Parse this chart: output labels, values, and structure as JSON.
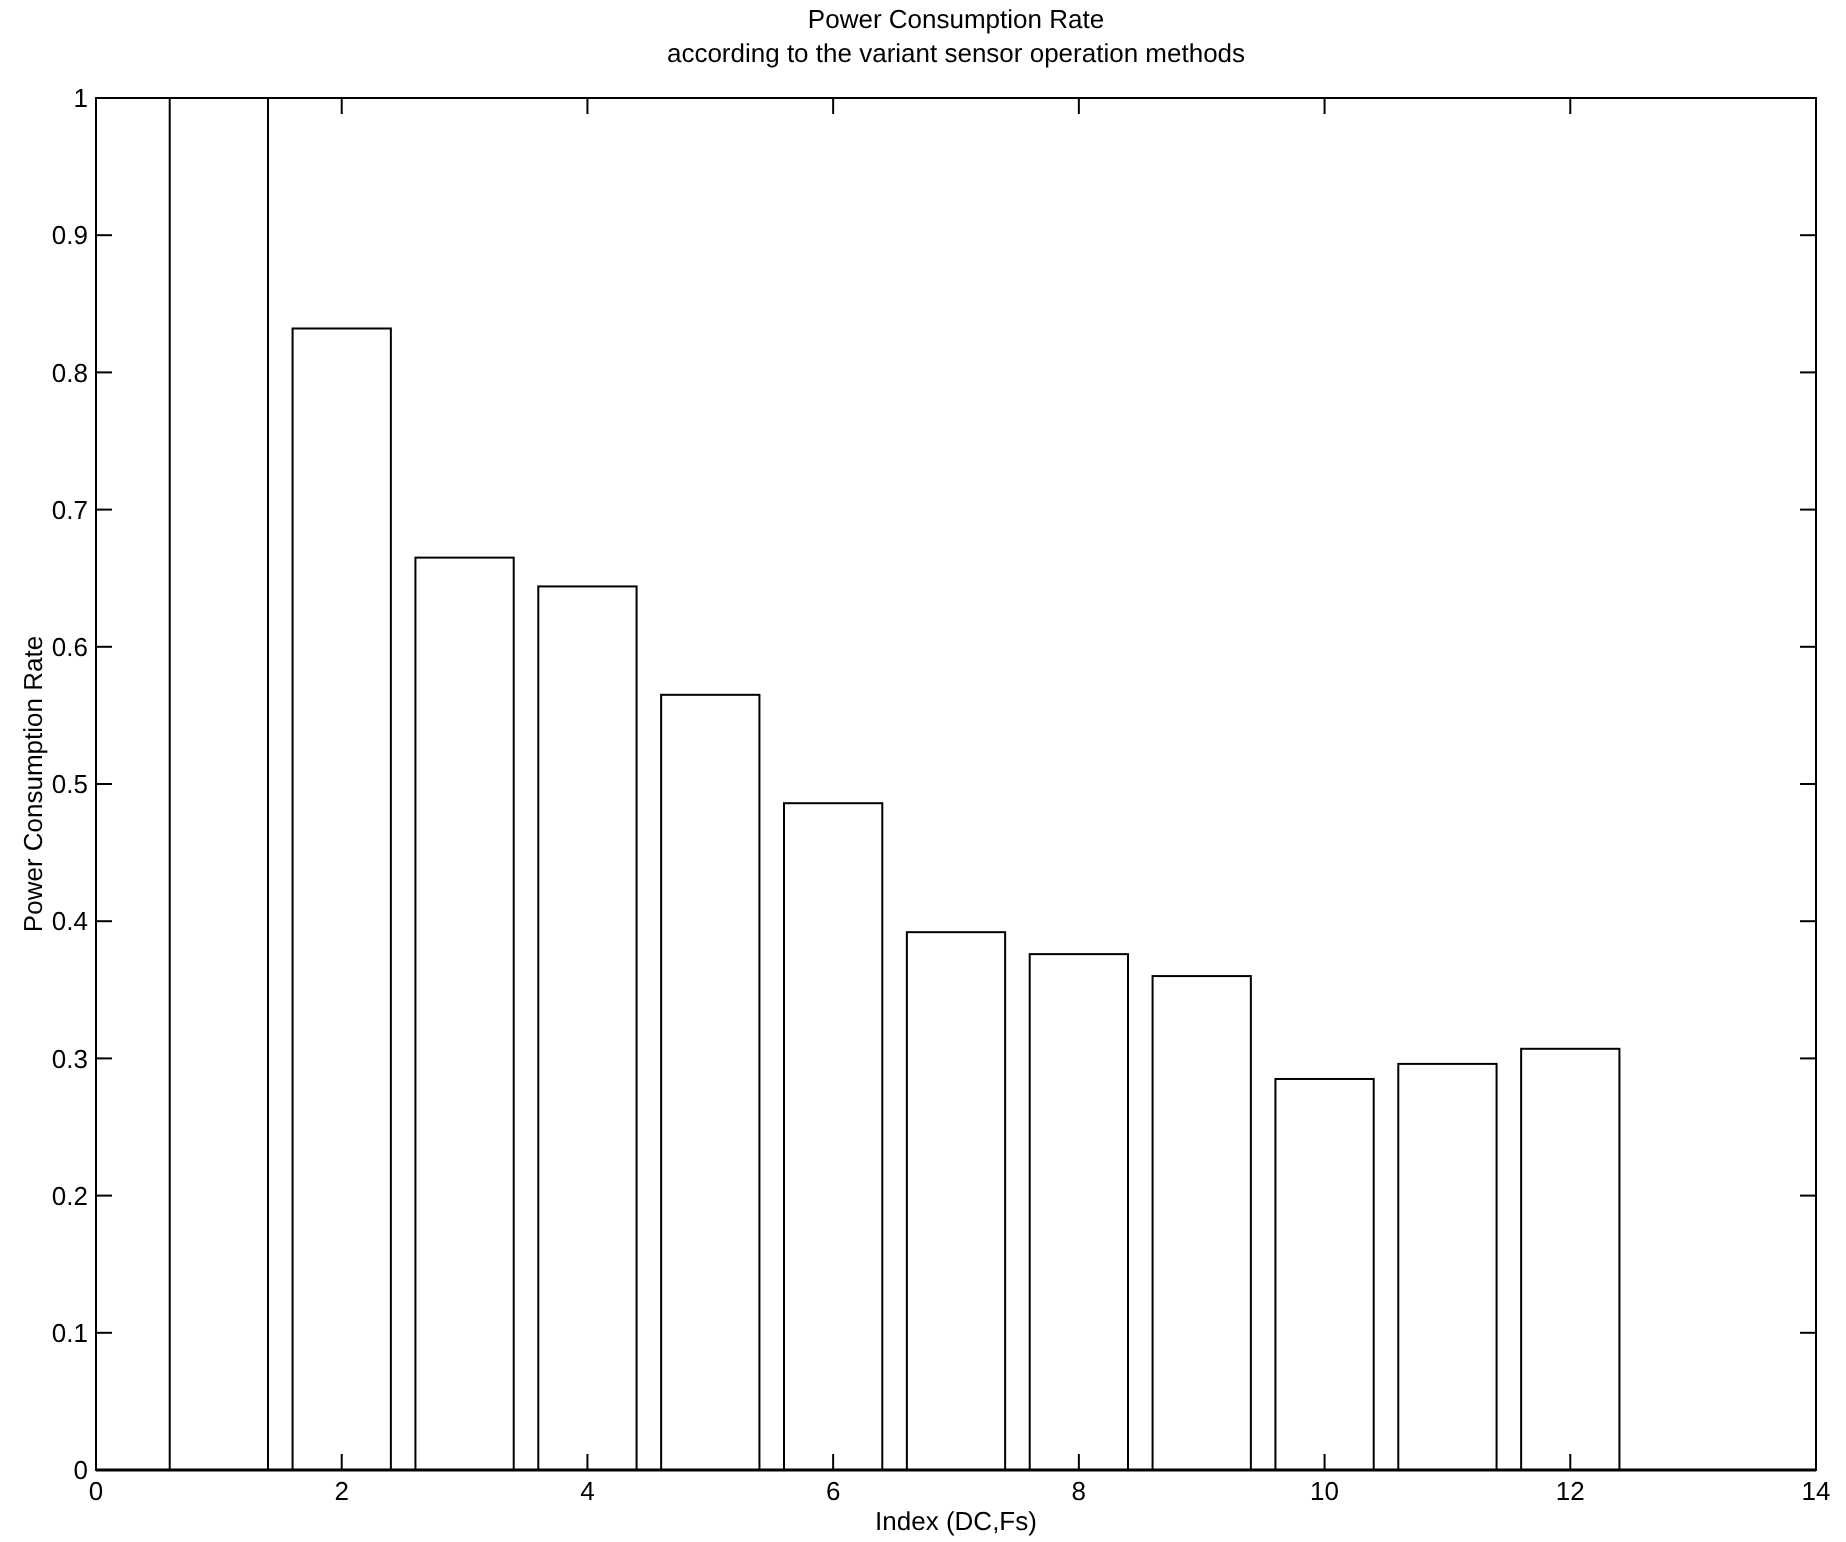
{
  "chart_data": {
    "type": "bar",
    "title": "Power Consumption Rate",
    "subtitle": "according to the variant sensor operation methods",
    "xlabel": "Index (DC,Fs)",
    "ylabel": "Power Consumption Rate",
    "x": [
      1,
      2,
      3,
      4,
      5,
      6,
      7,
      8,
      9,
      10,
      11,
      12
    ],
    "values": [
      1,
      0.832,
      0.665,
      0.644,
      0.565,
      0.486,
      0.392,
      0.376,
      0.36,
      0.285,
      0.296,
      0.307
    ],
    "color": "#ffffff",
    "xlim": [
      0,
      14
    ],
    "xticks": [
      0,
      2,
      4,
      6,
      8,
      10,
      12,
      14
    ],
    "ylim": [
      0,
      1
    ],
    "yticks": [
      0,
      0.1,
      0.2,
      0.3,
      0.4,
      0.5,
      0.6,
      0.7,
      0.8,
      0.9,
      1
    ],
    "grid": false
  }
}
